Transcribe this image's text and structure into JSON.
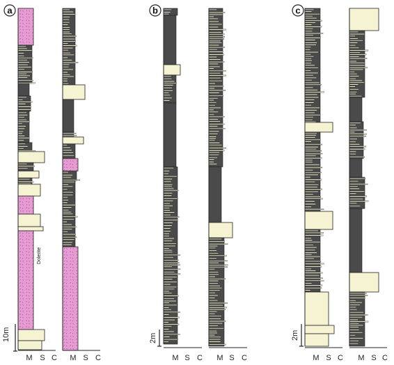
{
  "panels": [
    {
      "label": "a",
      "scale_label": "10m",
      "annotation": "Dolerite",
      "columns": [
        {
          "axis_labels": [
            "M",
            "S",
            "C"
          ]
        },
        {
          "axis_labels": [
            "M",
            "S",
            "C"
          ]
        }
      ]
    },
    {
      "label": "b",
      "scale_label": "2m",
      "columns": [
        {
          "axis_labels": [
            "M",
            "S",
            "C"
          ]
        },
        {
          "axis_labels": [
            "M",
            "S",
            "C"
          ]
        }
      ]
    },
    {
      "label": "c",
      "scale_label": "2m",
      "columns": [
        {
          "axis_labels": [
            "M",
            "S",
            "C"
          ]
        },
        {
          "axis_labels": [
            "M",
            "S",
            "C"
          ]
        }
      ]
    }
  ],
  "colors": {
    "mudstone": "#4a4a4a",
    "sandstone": "#f6f3d3",
    "dolerite": "#e79bd3",
    "outline": "#222222"
  }
}
